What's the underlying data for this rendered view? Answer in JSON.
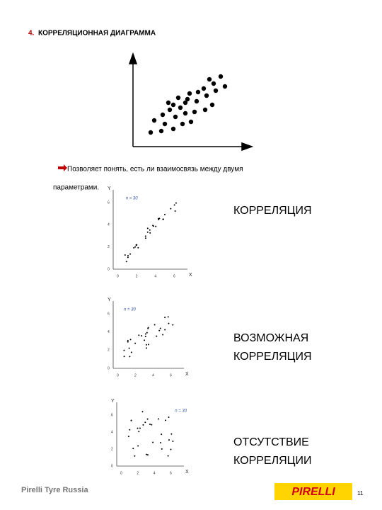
{
  "header": {
    "number": "4.",
    "title": "КОРРЕЛЯЦИОННАЯ ДИАГРАММА"
  },
  "intro": {
    "line1": "Позволяет понять, есть ли взаимосвязь между двумя",
    "line2": "параметрами."
  },
  "panels": [
    {
      "lines": [
        "КОРРЕЛЯЦИЯ"
      ],
      "n_label": "n = 30",
      "y_axis": "Y",
      "x_axis": "X",
      "yticks": [
        "0",
        "2",
        "4",
        "6"
      ],
      "xticks": [
        "0",
        "2",
        "4",
        "6"
      ]
    },
    {
      "lines": [
        "ВОЗМОЖНАЯ",
        "КОРРЕЛЯЦИЯ"
      ],
      "n_label": "n = 30",
      "y_axis": "Y",
      "x_axis": "X",
      "yticks": [
        "0",
        "2",
        "4",
        "6"
      ],
      "xticks": [
        "0",
        "2",
        "4",
        "6"
      ]
    },
    {
      "lines": [
        "ОТСУТСТВИЕ",
        "КОРРЕЛЯЦИИ"
      ],
      "n_label": "n = 30",
      "y_axis": "Y",
      "x_axis": "X",
      "yticks": [
        "0",
        "2",
        "4",
        "6"
      ],
      "xticks": [
        "0",
        "2",
        "4",
        "6"
      ]
    }
  ],
  "footer": {
    "company": "Pirelli Tyre Russia",
    "logo": "PIRELLI",
    "page": "11"
  }
}
